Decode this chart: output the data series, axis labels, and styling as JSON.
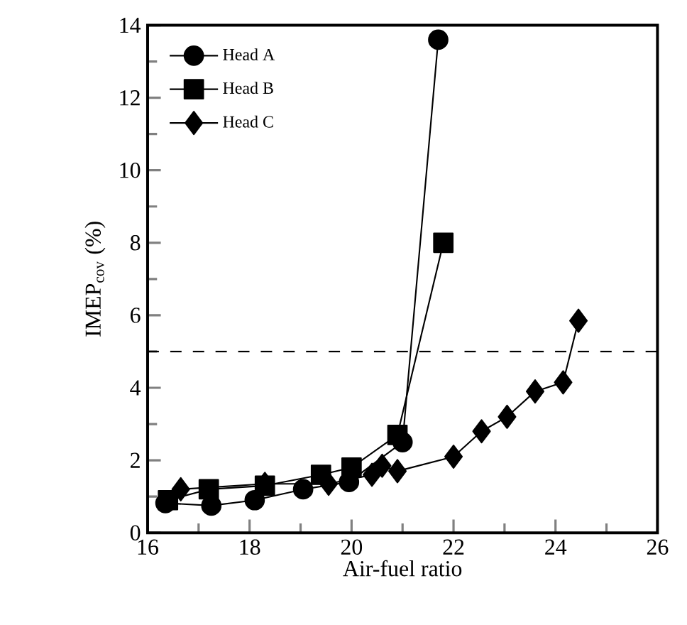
{
  "chart_data": {
    "type": "line",
    "xlabel": "Air-fuel ratio",
    "ylabel": "IMEP$_{cov}$ (%)",
    "xlim": [
      16,
      26
    ],
    "xticks": [
      16,
      18,
      20,
      22,
      24,
      26
    ],
    "ylim": [
      0,
      14
    ],
    "yticks": [
      0,
      2,
      4,
      6,
      8,
      10,
      12,
      14
    ],
    "legend": "top left",
    "grid": false,
    "line_style": "solid",
    "series": [
      {
        "name": "Head A",
        "color": "#000000",
        "marker": "circle",
        "x": [
          16.35,
          17.25,
          18.1,
          19.05,
          19.95,
          21.0,
          21.7
        ],
        "values": [
          0.82,
          0.75,
          0.9,
          1.2,
          1.4,
          2.5,
          13.6
        ]
      },
      {
        "name": "Head B",
        "color": "#000000",
        "marker": "square",
        "x": [
          16.4,
          17.2,
          18.3,
          19.4,
          20.0,
          20.9,
          21.8
        ],
        "values": [
          0.9,
          1.2,
          1.3,
          1.6,
          1.8,
          2.7,
          8.0
        ]
      },
      {
        "name": "Head C",
        "color": "#000000",
        "marker": "diamond",
        "x": [
          16.65,
          18.3,
          19.55,
          20.4,
          20.6,
          20.9,
          22.0,
          22.55,
          23.05,
          23.6,
          24.15,
          24.45
        ],
        "values": [
          1.2,
          1.35,
          1.35,
          1.6,
          1.85,
          1.7,
          2.1,
          2.8,
          3.2,
          3.9,
          4.15,
          5.85
        ]
      }
    ],
    "ref_lines": [
      {
        "axis": "y",
        "value": 5,
        "line_style": "dashed"
      }
    ]
  }
}
